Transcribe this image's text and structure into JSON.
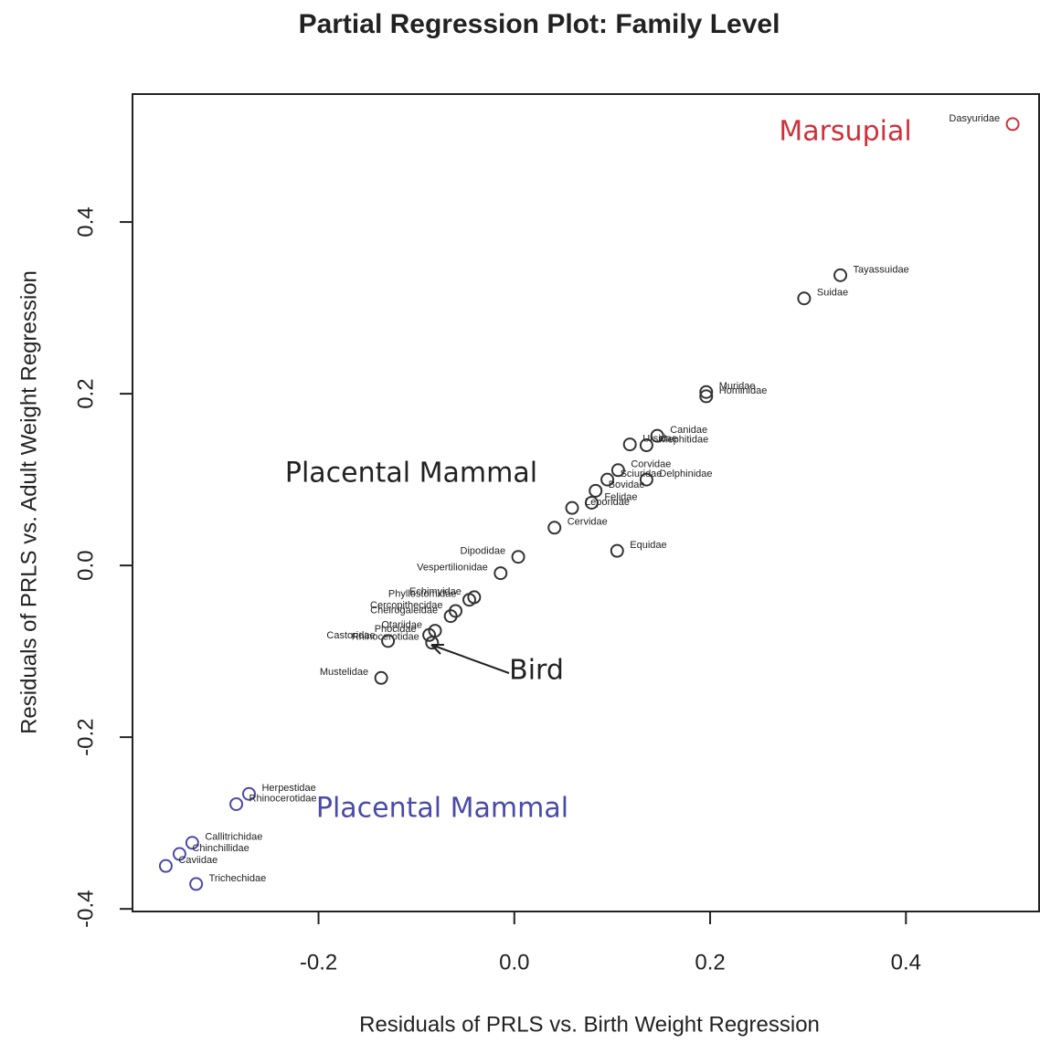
{
  "chart_data": {
    "type": "scatter",
    "title": "Partial Regression Plot: Family Level",
    "x_label": "Residuals of PRLS vs. Birth Weight Regression",
    "y_label": "Residuals of PRLS vs. Adult Weight Regression",
    "xlim": [
      -0.39,
      0.536
    ],
    "ylim": [
      -0.403,
      0.549
    ],
    "xticks": [
      -0.2,
      {
        "value": 0,
        "label": "0.0"
      },
      0.2,
      0.4
    ],
    "yticks": [
      -0.4,
      -0.2,
      {
        "value": 0,
        "label": "0.0"
      },
      0.2,
      0.4
    ],
    "series": [
      {
        "color": "#333333",
        "x": [
          0.333,
          0.296,
          0.196,
          0.196,
          0.146,
          0.135,
          0.118,
          0.106,
          0.135,
          0.095,
          0.083,
          0.079,
          0.059,
          0.041,
          0.004,
          0.105,
          -0.014,
          -0.041,
          -0.046,
          -0.06,
          -0.065,
          -0.081,
          -0.087,
          -0.084,
          -0.129,
          -0.136
        ],
        "values": [
          0.338,
          0.311,
          0.202,
          0.197,
          0.151,
          0.14,
          0.141,
          0.111,
          0.1,
          0.1,
          0.087,
          0.073,
          0.067,
          0.044,
          0.01,
          0.017,
          -0.009,
          -0.037,
          -0.04,
          -0.053,
          -0.059,
          -0.076,
          -0.081,
          -0.09,
          -0.088,
          -0.131
        ],
        "labels": [
          "Tayassuidae",
          "Suidae",
          "Muridae",
          "Hominidae",
          "Canidae",
          "Mephitidae",
          "Ursidae",
          "Corvidae",
          "Delphinidae",
          "Sciuridae",
          "Bovidae",
          "Felidae",
          "Leporidae",
          "Cervidae",
          "Dipodidae",
          "Equidae",
          "Vespertilionidae",
          "Echimyidae",
          "Phyllostomidae",
          "Cercopithecidae",
          "Cheirogaleidae",
          "Otariidae",
          "Phocidae",
          "Rhinocerotidae",
          "Castoridae",
          "Mustelidae"
        ]
      },
      {
        "color": "#d0303a",
        "x": [
          0.509
        ],
        "values": [
          0.514
        ],
        "labels": [
          "Dasyuridae"
        ]
      },
      {
        "color": "#4a4aaa",
        "x": [
          -0.271,
          -0.284,
          -0.329,
          -0.342,
          -0.356,
          -0.325
        ],
        "values": [
          -0.266,
          -0.278,
          -0.323,
          -0.336,
          -0.35,
          -0.371
        ],
        "labels": [
          "Herpestidae",
          "Rhinocerotidae",
          "Callitrichidae",
          "Chinchillidae",
          "Caviidae",
          "Trichechidae"
        ]
      }
    ],
    "annotations": [
      {
        "text": "Marsupial",
        "color": "#d0303a"
      },
      {
        "text": "Placental Mammal",
        "color": "#222222"
      },
      {
        "text": "Placental Mammal",
        "color": "#4a4aaa"
      },
      {
        "text": "Bird",
        "color": "#222222"
      }
    ]
  }
}
